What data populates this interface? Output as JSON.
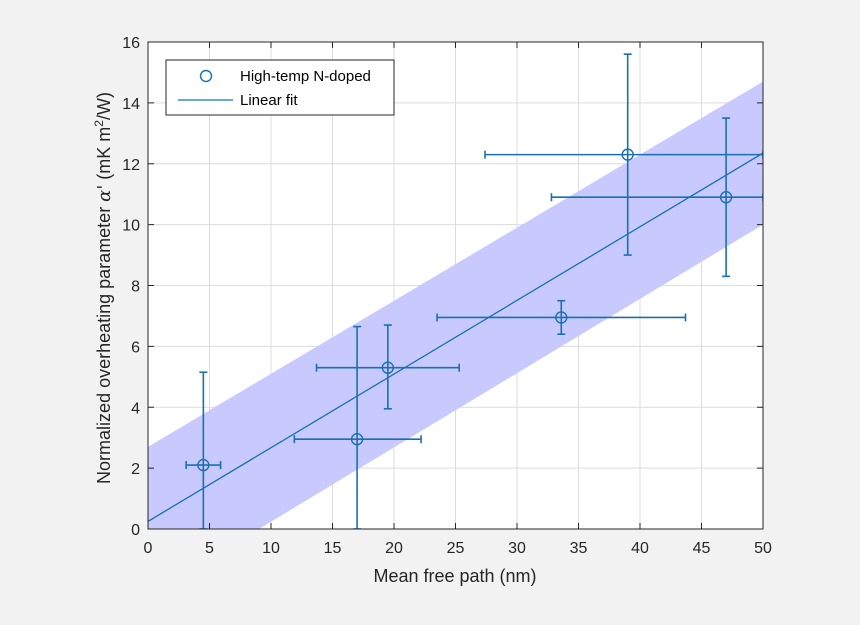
{
  "chart_data": {
    "type": "scatter",
    "xlabel": "Mean free path (nm)",
    "ylabel_main": "Normalized overheating parameter ",
    "ylabel_symbol": "α'",
    "ylabel_unit_pre": " (mK m",
    "ylabel_unit_sup": "2",
    "ylabel_unit_post": "/W)",
    "xlim": [
      0,
      50
    ],
    "ylim": [
      0,
      16
    ],
    "xticks": [
      0,
      5,
      10,
      15,
      20,
      25,
      30,
      35,
      40,
      45,
      50
    ],
    "yticks": [
      0,
      2,
      4,
      6,
      8,
      10,
      12,
      14,
      16
    ],
    "grid": true,
    "legend_position": "top-left",
    "series": [
      {
        "name": "High-temp N-doped",
        "kind": "points-with-errorbars",
        "color": "#1a6fb3",
        "points": [
          {
            "x": 4.5,
            "y": 2.1,
            "xerr": [
              1.4,
              1.4
            ],
            "yerr": [
              2.1,
              3.05
            ]
          },
          {
            "x": 17.0,
            "y": 2.95,
            "xerr": [
              5.1,
              5.2
            ],
            "yerr": [
              2.95,
              3.7
            ]
          },
          {
            "x": 19.5,
            "y": 5.3,
            "xerr": [
              5.8,
              5.8
            ],
            "yerr": [
              1.35,
              1.4
            ]
          },
          {
            "x": 33.6,
            "y": 6.95,
            "xerr": [
              10.1,
              10.1
            ],
            "yerr": [
              0.55,
              0.55
            ]
          },
          {
            "x": 39.0,
            "y": 12.3,
            "xerr": [
              11.6,
              11.0
            ],
            "yerr": [
              3.3,
              3.3
            ]
          },
          {
            "x": 47.0,
            "y": 10.9,
            "xerr": [
              14.2,
              3.0
            ],
            "yerr": [
              2.6,
              2.6
            ]
          }
        ]
      },
      {
        "name": "Linear fit",
        "kind": "line",
        "color": "#1a6fb3",
        "x": [
          0,
          50
        ],
        "y": [
          0.25,
          12.35
        ]
      }
    ],
    "confidence_band": {
      "color": "#c7c9ff",
      "x": [
        0,
        50
      ],
      "upper": [
        2.7,
        14.7
      ],
      "lower": [
        -2.2,
        10.0
      ]
    }
  }
}
